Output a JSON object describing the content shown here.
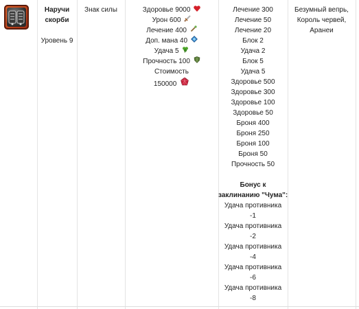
{
  "item": {
    "name_line1": "Наручи",
    "name_line2": "скорби",
    "level": "Уровень 9"
  },
  "type": "Знак силы",
  "stats": [
    {
      "text": "Здоровье 9000",
      "icon": "heart-icon"
    },
    {
      "text": "Урон 600",
      "icon": "sword-icon"
    },
    {
      "text": "Лечение 400",
      "icon": "wand-icon"
    },
    {
      "text": "Доп. мана 40",
      "icon": "mana-crystal-icon"
    },
    {
      "text": "Удача 5",
      "icon": "clover-icon"
    },
    {
      "text": "Прочность 100",
      "icon": "shield-icon"
    }
  ],
  "cost": {
    "label": "Стоимость",
    "value": "150000",
    "icon": "ruby-icon"
  },
  "bonuses": [
    "Лечение 300",
    "Лечение 50",
    "Лечение 20",
    "Блок 2",
    "Удача 2",
    "Блок 5",
    "Удача 5",
    "Здоровье 500",
    "Здоровье 300",
    "Здоровье 100",
    "Здоровье 50",
    "Броня 400",
    "Броня 250",
    "Броня 100",
    "Броня 50",
    "Прочность 50"
  ],
  "spell_bonus": {
    "title_line1": "Бонус к",
    "title_line2": "заклинанию \"Чума\":",
    "entries": [
      {
        "label": "Удача противника",
        "value": "-1"
      },
      {
        "label": "Удача противника",
        "value": "-2"
      },
      {
        "label": "Удача противника",
        "value": "-4"
      },
      {
        "label": "Удача противника",
        "value": "-6"
      },
      {
        "label": "Удача противника",
        "value": "-8"
      }
    ]
  },
  "drops": {
    "line1": "Безумный вепрь,",
    "line2": "Король червей,",
    "line3": "Аранеи"
  },
  "colors": {
    "heart": "#d4202a",
    "ruby": "#c9213a",
    "clover": "#4fa62c",
    "shield": "#5a7d3a",
    "mana": "#2f7fc5"
  }
}
